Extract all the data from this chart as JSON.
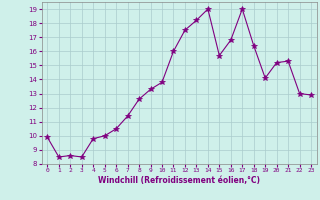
{
  "x": [
    0,
    1,
    2,
    3,
    4,
    5,
    6,
    7,
    8,
    9,
    10,
    11,
    12,
    13,
    14,
    15,
    16,
    17,
    18,
    19,
    20,
    21,
    22,
    23
  ],
  "y": [
    9.9,
    8.5,
    8.6,
    8.5,
    9.8,
    10.0,
    10.5,
    11.4,
    12.6,
    13.3,
    13.8,
    16.0,
    17.5,
    18.2,
    19.0,
    15.7,
    16.8,
    19.0,
    16.4,
    14.1,
    15.2,
    15.3,
    13.0,
    12.9
  ],
  "line_color": "#800080",
  "marker": "*",
  "marker_size": 4,
  "bg_color": "#cff0ea",
  "xlabel": "Windchill (Refroidissement éolien,°C)",
  "ylim": [
    8,
    19.5
  ],
  "xlim": [
    -0.5,
    23.5
  ],
  "yticks": [
    8,
    9,
    10,
    11,
    12,
    13,
    14,
    15,
    16,
    17,
    18,
    19
  ],
  "xticks": [
    0,
    1,
    2,
    3,
    4,
    5,
    6,
    7,
    8,
    9,
    10,
    11,
    12,
    13,
    14,
    15,
    16,
    17,
    18,
    19,
    20,
    21,
    22,
    23
  ],
  "grid_color": "#aacccc",
  "xlabel_color": "#800080",
  "spine_color": "#888888"
}
